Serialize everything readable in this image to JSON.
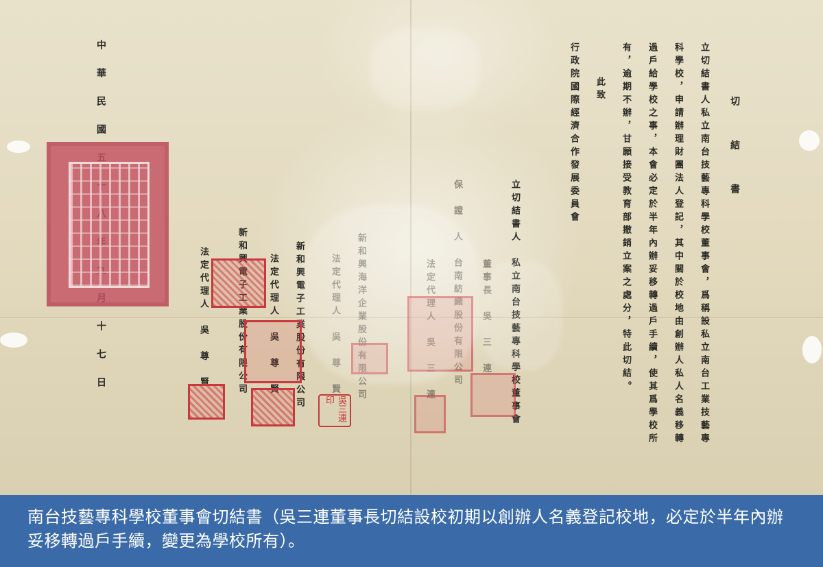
{
  "document": {
    "title": "切　結　書",
    "body_lines": [
      "立切結書人私立南台技藝專科學校董事會，爲稱設私立南台工業技藝專",
      "科學校，申請辦理財團法人登記，其中關於校地由創辦人私人名義移轉",
      "過戶給學校之事，本會必定於半年內辦妥移轉過戶手續，使其爲學校所",
      "有，逾期不辦，甘願接受教育部撤銷立案之處分，特此切結。"
    ],
    "salutation": "此致",
    "recipient": "行政院國際經濟合作發展委員會",
    "signer_label": "立切結書人　私立南台技藝專科學校董事會",
    "signer_rep": "董事長　吳　三　連",
    "guarantor_label": "保　證　人　台南紡織股份有限公司",
    "guarantor_rep": "法定代理人　吳　三　連",
    "company2_name": "新和興海洋企業股份有限公司",
    "company2_rep": "法定代理人　吳　尊　賢",
    "company3_name": "新和興電子工業股份有限公司",
    "company3_rep": "法定代理人　吳　尊　賢",
    "date_line": "中華民國五十八年九月十七日",
    "seal_text": "吳三連印"
  },
  "caption": {
    "text": "南台技藝專科學校董事會切結書（吳三連董事長切結設校初期以創辦人名義登記校地，必定於半年內辦妥移轉過戶手續，變更為學校所有）。"
  },
  "colors": {
    "caption_bg": "#3a6ba8",
    "paper": "#e7dfc6",
    "seal_red": "#c8383d"
  }
}
